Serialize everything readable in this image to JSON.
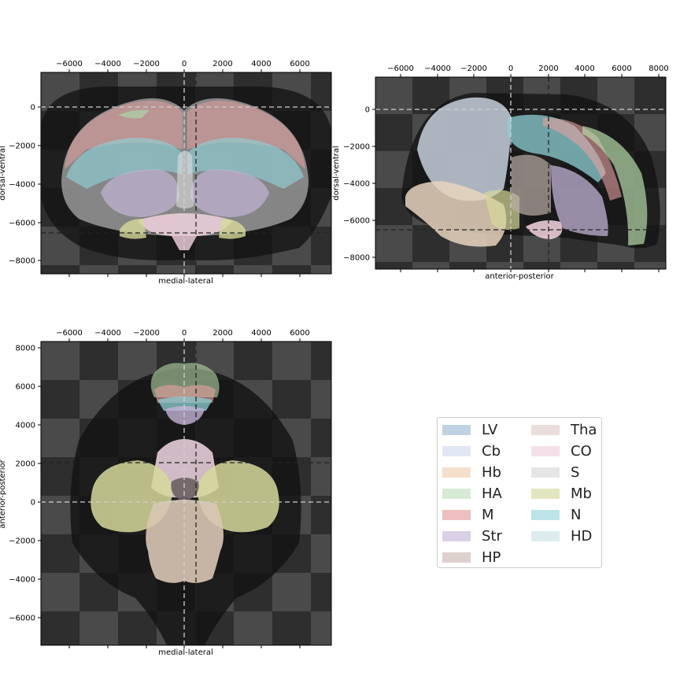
{
  "panels": [
    {
      "id": "coronal",
      "xlabel": "medial-lateral",
      "ylabel": "dorsal-ventral",
      "xticks": [
        "−6000",
        "−4000",
        "−2000",
        "0",
        "2000",
        "4000",
        "6000"
      ],
      "yticks": [
        "0",
        "−2000",
        "−4000",
        "−6000",
        "−8000"
      ]
    },
    {
      "id": "sagittal",
      "xlabel": "anterior-posterior",
      "ylabel": "dorsal-ventral",
      "xticks": [
        "−6000",
        "−4000",
        "−2000",
        "0",
        "2000",
        "4000",
        "6000",
        "8000"
      ],
      "yticks": [
        "0",
        "−2000",
        "−4000",
        "−6000",
        "−8000"
      ]
    },
    {
      "id": "horizontal",
      "xlabel": "medial-lateral",
      "ylabel": "anterior-posterior",
      "xticks": [
        "−6000",
        "−4000",
        "−2000",
        "0",
        "2000",
        "4000",
        "6000"
      ],
      "yticks": [
        "8000",
        "6000",
        "4000",
        "2000",
        "0",
        "−2000",
        "−4000",
        "−6000"
      ]
    }
  ],
  "legend": [
    {
      "label": "LV",
      "color": "#c5d8ea"
    },
    {
      "label": "Cb",
      "color": "#e7eefa"
    },
    {
      "label": "Hb",
      "color": "#fde6d2"
    },
    {
      "label": "HA",
      "color": "#ddf1dc"
    },
    {
      "label": "M",
      "color": "#f4c6c6"
    },
    {
      "label": "Str",
      "color": "#e0d6ec"
    },
    {
      "label": "HP",
      "color": "#e4d6d3"
    },
    {
      "label": "Tha",
      "color": "#f1e5e4"
    },
    {
      "label": "CO",
      "color": "#fce6f0"
    },
    {
      "label": "S",
      "color": "#ececec"
    },
    {
      "label": "Mb",
      "color": "#eaecc4"
    },
    {
      "label": "N",
      "color": "#c2ecf0"
    },
    {
      "label": "HD",
      "color": "#e4f3f6"
    }
  ]
}
